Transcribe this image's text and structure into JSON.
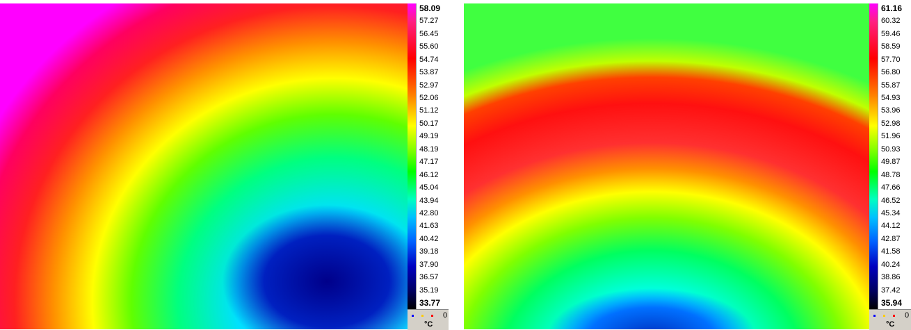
{
  "panels": [
    {
      "scale_labels": [
        "58.09",
        "57.27",
        "56.45",
        "55.60",
        "54.74",
        "53.87",
        "52.97",
        "52.06",
        "51.12",
        "50.17",
        "49.19",
        "48.19",
        "47.17",
        "46.12",
        "45.04",
        "43.94",
        "42.80",
        "41.63",
        "40.42",
        "39.18",
        "37.90",
        "36.57",
        "35.19",
        "33.77"
      ],
      "counter": "0",
      "unit": "°C"
    },
    {
      "scale_labels": [
        "61.16",
        "60.32",
        "59.46",
        "58.59",
        "57.70",
        "56.80",
        "55.87",
        "54.93",
        "53.96",
        "52.98",
        "51.96",
        "50.93",
        "49.87",
        "48.78",
        "47.66",
        "46.52",
        "45.34",
        "44.12",
        "42.87",
        "41.58",
        "40.24",
        "38.86",
        "37.42",
        "35.94"
      ],
      "counter": "0",
      "unit": "°C"
    }
  ]
}
